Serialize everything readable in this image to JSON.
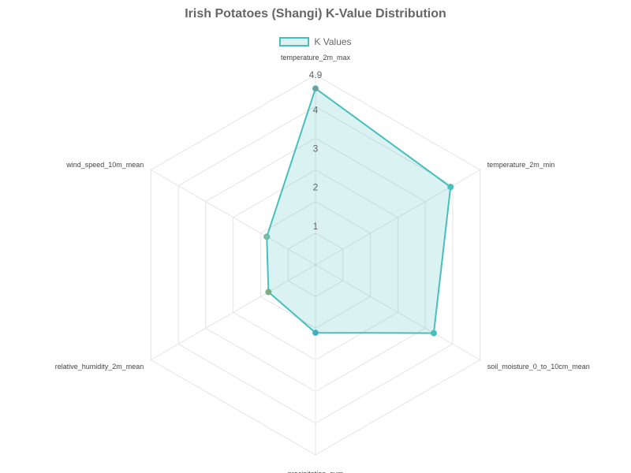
{
  "chart_data": {
    "type": "radar",
    "title": "Irish Potatoes (Shangi) K-Value Distribution",
    "axes": [
      "temperature_2m_max",
      "temperature_2m_min",
      "soil_moisture_0_to_10cm_mean",
      "precipitation_sum",
      "relative_humidity_2m_mean",
      "wind_speed_10m_mean"
    ],
    "series": [
      {
        "name": "K Values",
        "values": [
          4.55,
          4.02,
          3.52,
          1.75,
          1.4,
          1.45
        ],
        "point_colors": [
          "#7a9a9a",
          "#46bfbd",
          "#46bfbd",
          "#4aa8c8",
          "#8aaa70",
          "#7ac0a0"
        ]
      }
    ],
    "r_range": [
      0,
      4.9
    ],
    "ticks": [
      "1",
      "2",
      "3",
      "4",
      "4.9"
    ],
    "legend_position": "top",
    "colors": {
      "line": "#46bfbd",
      "fill": "rgba(70,191,189,0.2)",
      "grid": "#e4e4e4"
    }
  }
}
